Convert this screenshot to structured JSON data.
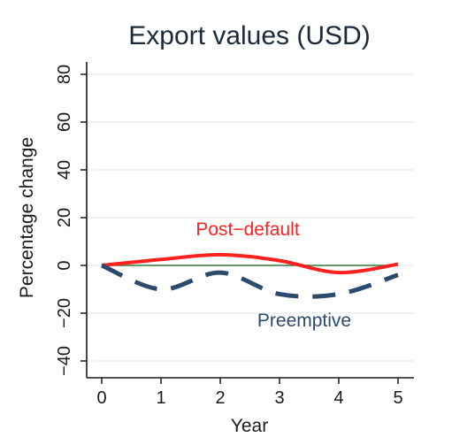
{
  "chart_data": {
    "type": "line",
    "title": "Export values (USD)",
    "xlabel": "Year",
    "ylabel": "Percentage change",
    "x": [
      0,
      1,
      2,
      3,
      4,
      5
    ],
    "xlim": [
      0,
      5
    ],
    "ylim": [
      -45,
      85
    ],
    "yticks": [
      -40,
      -20,
      0,
      20,
      40,
      60,
      80
    ],
    "xticks": [
      0,
      1,
      2,
      3,
      4,
      5
    ],
    "ytick_labels": [
      "−40",
      "−20",
      "0",
      "20",
      "40",
      "60",
      "80"
    ],
    "xtick_labels": [
      "0",
      "1",
      "2",
      "3",
      "4",
      "5"
    ],
    "grid": true,
    "reference_line": {
      "y": 0,
      "color": "#3a7a3a"
    },
    "series": [
      {
        "label": "Post−default",
        "color": "#ff2020",
        "style": "solid",
        "values": [
          0,
          2.5,
          4.5,
          2,
          -3,
          0.5
        ]
      },
      {
        "label": "Preemptive",
        "color": "#2a4a6e",
        "style": "dashed",
        "values": [
          0,
          -10,
          -3,
          -12,
          -12,
          -4
        ]
      }
    ]
  }
}
